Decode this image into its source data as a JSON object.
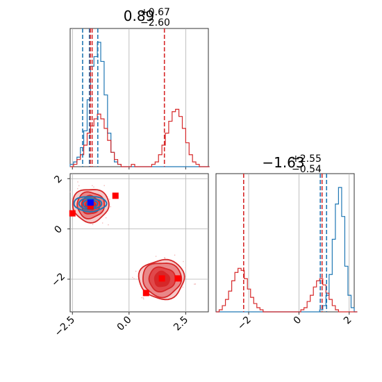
{
  "figure": {
    "type": "corner"
  },
  "chart_data": [
    {
      "type": "histogram",
      "panel": "marginal-param1",
      "title": {
        "main": "0.89",
        "sup": "+0.67",
        "sub": "−2.60"
      },
      "xlim": [
        -2.6,
        3.5
      ],
      "grid": true,
      "bins": {
        "start": -2.6,
        "width": 0.15
      },
      "series": [
        {
          "color": "#1f77b4",
          "counts": [
            1,
            2,
            4,
            8,
            15,
            28,
            42,
            46,
            52,
            44,
            30,
            14,
            6,
            2,
            1,
            0,
            0,
            0,
            0,
            0,
            0,
            0,
            0,
            0,
            0,
            0,
            0,
            0,
            0,
            0,
            0,
            0,
            0,
            0,
            0,
            0,
            0,
            0,
            0,
            0,
            0
          ]
        },
        {
          "color": "#d62728",
          "counts": [
            0,
            1,
            3,
            5,
            9,
            14,
            17,
            20,
            22,
            20,
            16,
            11,
            6,
            3,
            1,
            0,
            0,
            0,
            1,
            0,
            0,
            0,
            0,
            0,
            1,
            2,
            5,
            9,
            14,
            19,
            23,
            24,
            21,
            16,
            10,
            5,
            2,
            1,
            0,
            0,
            0
          ]
        }
      ],
      "vlines": [
        {
          "x": -2.05,
          "color": "#1f77b4"
        },
        {
          "x": -1.75,
          "color": "#1f77b4"
        },
        {
          "x": -1.38,
          "color": "#1f77b4"
        },
        {
          "x": -1.71,
          "color": "#d62728"
        },
        {
          "x": -1.63,
          "color": "#d62728"
        },
        {
          "x": 1.56,
          "color": "#d62728"
        }
      ]
    },
    {
      "type": "contour",
      "panel": "joint",
      "xlim": [
        -2.6,
        3.5
      ],
      "ylim": [
        -3.3,
        2.2
      ],
      "xticks": [
        -2.5,
        0.0,
        2.5
      ],
      "xtick_labels": [
        "−2.5",
        "0.0",
        "2.5"
      ],
      "yticks": [
        -2,
        0,
        2
      ],
      "ytick_labels": [
        "−2",
        "0",
        "2"
      ],
      "grid": true,
      "red_modes": [
        {
          "center": [
            -1.7,
            0.95
          ],
          "levels": [
            [
              0.22,
              0.2
            ],
            [
              0.4,
              0.36
            ],
            [
              0.6,
              0.52
            ],
            [
              0.8,
              0.66
            ]
          ]
        },
        {
          "center": [
            1.45,
            -2.0
          ],
          "levels": [
            [
              0.33,
              0.3
            ],
            [
              0.58,
              0.48
            ],
            [
              0.85,
              0.68
            ],
            [
              1.0,
              0.78
            ]
          ]
        }
      ],
      "blue_mode": {
        "center": [
          -1.72,
          1.0
        ],
        "levels": [
          [
            0.14,
            0.08
          ],
          [
            0.32,
            0.16
          ],
          [
            0.5,
            0.22
          ],
          [
            0.72,
            0.3
          ]
        ]
      },
      "red_markers": [
        [
          -2.5,
          0.62
        ],
        [
          -0.6,
          1.32
        ],
        [
          -1.7,
          0.9
        ],
        [
          1.45,
          -1.97
        ],
        [
          2.15,
          -1.97
        ],
        [
          0.75,
          -2.55
        ]
      ],
      "blue_markers": [
        [
          -1.7,
          1.05
        ]
      ],
      "red_color": "#d62728",
      "blue_color": "#1f77b4",
      "marker_color": "#ff0000",
      "blue_marker_color": "#0000ff"
    },
    {
      "type": "histogram",
      "panel": "marginal-param2",
      "title": {
        "main": "−1.63",
        "sup": "+2.55",
        "sub": "−0.54"
      },
      "xlim": [
        -3.3,
        2.2
      ],
      "xticks": [
        -2,
        0,
        2
      ],
      "xtick_labels": [
        "−2",
        "0",
        "2"
      ],
      "grid": true,
      "bins": {
        "start": -3.3,
        "width": 0.125
      },
      "series": [
        {
          "color": "#1f77b4",
          "counts": [
            0,
            0,
            0,
            0,
            0,
            0,
            0,
            0,
            0,
            0,
            0,
            0,
            0,
            0,
            0,
            0,
            0,
            0,
            0,
            0,
            0,
            0,
            0,
            0,
            0,
            0,
            0,
            0,
            0,
            0,
            0,
            0,
            0,
            1,
            3,
            8,
            18,
            35,
            52,
            60,
            46,
            22,
            8,
            2,
            0
          ]
        },
        {
          "color": "#d62728",
          "counts": [
            0,
            1,
            3,
            6,
            10,
            15,
            19,
            21,
            20,
            16,
            11,
            7,
            4,
            2,
            1,
            0,
            0,
            0,
            0,
            0,
            0,
            0,
            0,
            0,
            0,
            0,
            0,
            1,
            2,
            5,
            8,
            12,
            15,
            16,
            13,
            9,
            6,
            3,
            1,
            0,
            0,
            0,
            0,
            0,
            0
          ]
        }
      ],
      "vlines": [
        {
          "x": -2.2,
          "color": "#d62728"
        },
        {
          "x": 0.85,
          "color": "#1f77b4"
        },
        {
          "x": 0.92,
          "color": "#d62728"
        },
        {
          "x": 1.1,
          "color": "#1f77b4"
        }
      ]
    }
  ]
}
